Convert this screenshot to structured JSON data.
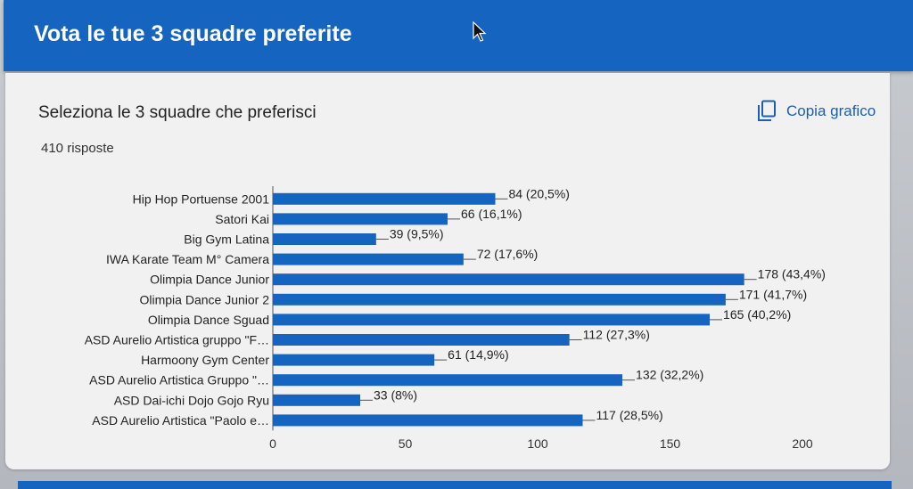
{
  "header": {
    "title": "Vota le tue 3 squadre preferite"
  },
  "question": {
    "title": "Seleziona le 3 squadre che preferisci",
    "responses": "410 risposte",
    "copy_label": "Copia grafico"
  },
  "colors": {
    "header": "#1565c0",
    "bar": "#1565c0",
    "link": "#1a5fb4"
  },
  "icons": {
    "copy": "copy-icon",
    "cursor": "mouse-cursor-icon"
  },
  "chart_data": {
    "type": "bar",
    "orientation": "horizontal",
    "title": "",
    "xlabel": "",
    "ylabel": "",
    "categories": [
      "Hip Hop Portuense 2001",
      "Satori Kai",
      "Big Gym Latina",
      "IWA Karate Team M° Camera",
      "Olimpia Dance Junior",
      "Olimpia Dance Junior 2",
      "Olimpia Dance Sguad",
      "ASD Aurelio Artistica gruppo \"F…",
      "Harmoony Gym Center",
      "ASD Aurelio Artistica Gruppo \"…",
      "ASD Dai-ichi Dojo Gojo Ryu",
      "ASD Aurelio Artistica \"Paolo e…"
    ],
    "values": [
      84,
      66,
      39,
      72,
      178,
      171,
      165,
      112,
      61,
      132,
      33,
      117
    ],
    "value_labels": [
      "84 (20,5%)",
      "66 (16,1%)",
      "39 (9,5%)",
      "72 (17,6%)",
      "178 (43,4%)",
      "171 (41,7%)",
      "165 (40,2%)",
      "112 (27,3%)",
      "61 (14,9%)",
      "132 (32,2%)",
      "33 (8%)",
      "117 (28,5%)"
    ],
    "xticks": [
      0,
      50,
      100,
      150,
      200
    ],
    "xlim": [
      0,
      200
    ],
    "grid": false,
    "legend": "none"
  }
}
